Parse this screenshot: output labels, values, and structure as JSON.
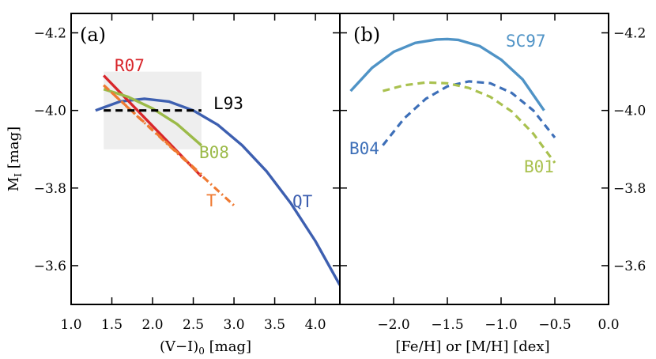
{
  "colors": {
    "qt": "#3d5fb0",
    "r07": "#d8262b",
    "b08": "#9bba48",
    "t": "#ef7a32",
    "l93": "#000000",
    "sc97": "#4f93c6",
    "b04": "#3d6fb8",
    "b01": "#a9c14f",
    "box": "#eeeeee"
  },
  "chart_data": [
    {
      "type": "line",
      "panel_label": "(a)",
      "xlabel_main": "(V−I)",
      "xlabel_sub": "0",
      "xlabel_unit": " [mag]",
      "ylabel_main": "M",
      "ylabel_sub": "I",
      "ylabel_unit": " [mag]",
      "xlim": [
        1.0,
        4.3
      ],
      "ylim": [
        -3.5,
        -4.25
      ],
      "xticks": [
        1.0,
        1.5,
        2.0,
        2.5,
        3.0,
        3.5,
        4.0
      ],
      "xtick_labels": [
        "1.0",
        "1.5",
        "2.0",
        "2.5",
        "3.0",
        "3.5",
        "4.0"
      ],
      "yticks": [
        -4.2,
        -4.0,
        -3.8,
        -3.6
      ],
      "ytick_labels": [
        "−4.2",
        "−4.0",
        "−3.8",
        "−3.6"
      ],
      "shaded_region": {
        "x": [
          1.4,
          2.6
        ],
        "y": [
          -3.9,
          -4.1
        ]
      },
      "series": [
        {
          "name": "QT",
          "label": "QT",
          "color_key": "qt",
          "style": "solid",
          "x": [
            1.3,
            1.6,
            1.9,
            2.2,
            2.5,
            2.8,
            3.1,
            3.4,
            3.7,
            4.0,
            4.3
          ],
          "y": [
            -4.0,
            -4.023,
            -4.03,
            -4.023,
            -4.0,
            -3.963,
            -3.91,
            -3.843,
            -3.76,
            -3.663,
            -3.55
          ]
        },
        {
          "name": "R07",
          "label": "R07",
          "color_key": "r07",
          "style": "solid",
          "x": [
            1.4,
            2.6
          ],
          "y": [
            -4.09,
            -3.83
          ]
        },
        {
          "name": "B08",
          "label": "B08",
          "color_key": "b08",
          "style": "solid",
          "x": [
            1.4,
            1.7,
            2.0,
            2.3,
            2.6
          ],
          "y": [
            -4.055,
            -4.035,
            -4.005,
            -3.965,
            -3.91
          ]
        },
        {
          "name": "T",
          "label": "T",
          "color_key": "t",
          "style": "dash",
          "x": [
            1.4,
            2.6
          ],
          "y": [
            -4.065,
            -3.835
          ]
        },
        {
          "name": "T",
          "label": "",
          "color_key": "t",
          "style": "dashdot",
          "x": [
            1.4,
            3.0
          ],
          "y": [
            -4.065,
            -3.755
          ]
        },
        {
          "name": "L93",
          "label": "L93",
          "color_key": "l93",
          "style": "dash",
          "x": [
            1.4,
            2.6
          ],
          "y": [
            -4.0,
            -4.0
          ]
        }
      ]
    },
    {
      "type": "line",
      "panel_label": "(b)",
      "xlabel": "[Fe/H] or [M/H] [dex]",
      "xlim": [
        -2.5,
        0.0
      ],
      "ylim": [
        -3.5,
        -4.25
      ],
      "xticks": [
        -2.0,
        -1.5,
        -1.0,
        -0.5,
        0.0
      ],
      "xtick_labels": [
        "−2.0",
        "−1.5",
        "−1.0",
        "−0.5",
        "0.0"
      ],
      "yticks": [
        -4.2,
        -4.0,
        -3.8,
        -3.6
      ],
      "ytick_labels": [
        "−4.2",
        "−4.0",
        "−3.8",
        "−3.6"
      ],
      "series": [
        {
          "name": "SC97",
          "label": "SC97",
          "color_key": "sc97",
          "style": "solid",
          "x": [
            -2.4,
            -2.2,
            -2.0,
            -1.8,
            -1.6,
            -1.5,
            -1.4,
            -1.2,
            -1.0,
            -0.8,
            -0.6
          ],
          "y": [
            -4.05,
            -4.11,
            -4.151,
            -4.174,
            -4.183,
            -4.184,
            -4.182,
            -4.166,
            -4.131,
            -4.08,
            -4.0
          ]
        },
        {
          "name": "B04",
          "label": "B04",
          "color_key": "b04",
          "style": "dash",
          "x": [
            -2.1,
            -1.9,
            -1.7,
            -1.5,
            -1.3,
            -1.1,
            -0.9,
            -0.7,
            -0.5
          ],
          "y": [
            -3.91,
            -3.98,
            -4.03,
            -4.062,
            -4.075,
            -4.07,
            -4.045,
            -4.0,
            -3.93
          ]
        },
        {
          "name": "B01",
          "label": "B01",
          "color_key": "b01",
          "style": "dash",
          "x": [
            -2.1,
            -1.9,
            -1.7,
            -1.5,
            -1.3,
            -1.1,
            -0.9,
            -0.7,
            -0.5
          ],
          "y": [
            -4.05,
            -4.065,
            -4.072,
            -4.07,
            -4.058,
            -4.035,
            -3.997,
            -3.94,
            -3.865
          ]
        }
      ]
    }
  ]
}
